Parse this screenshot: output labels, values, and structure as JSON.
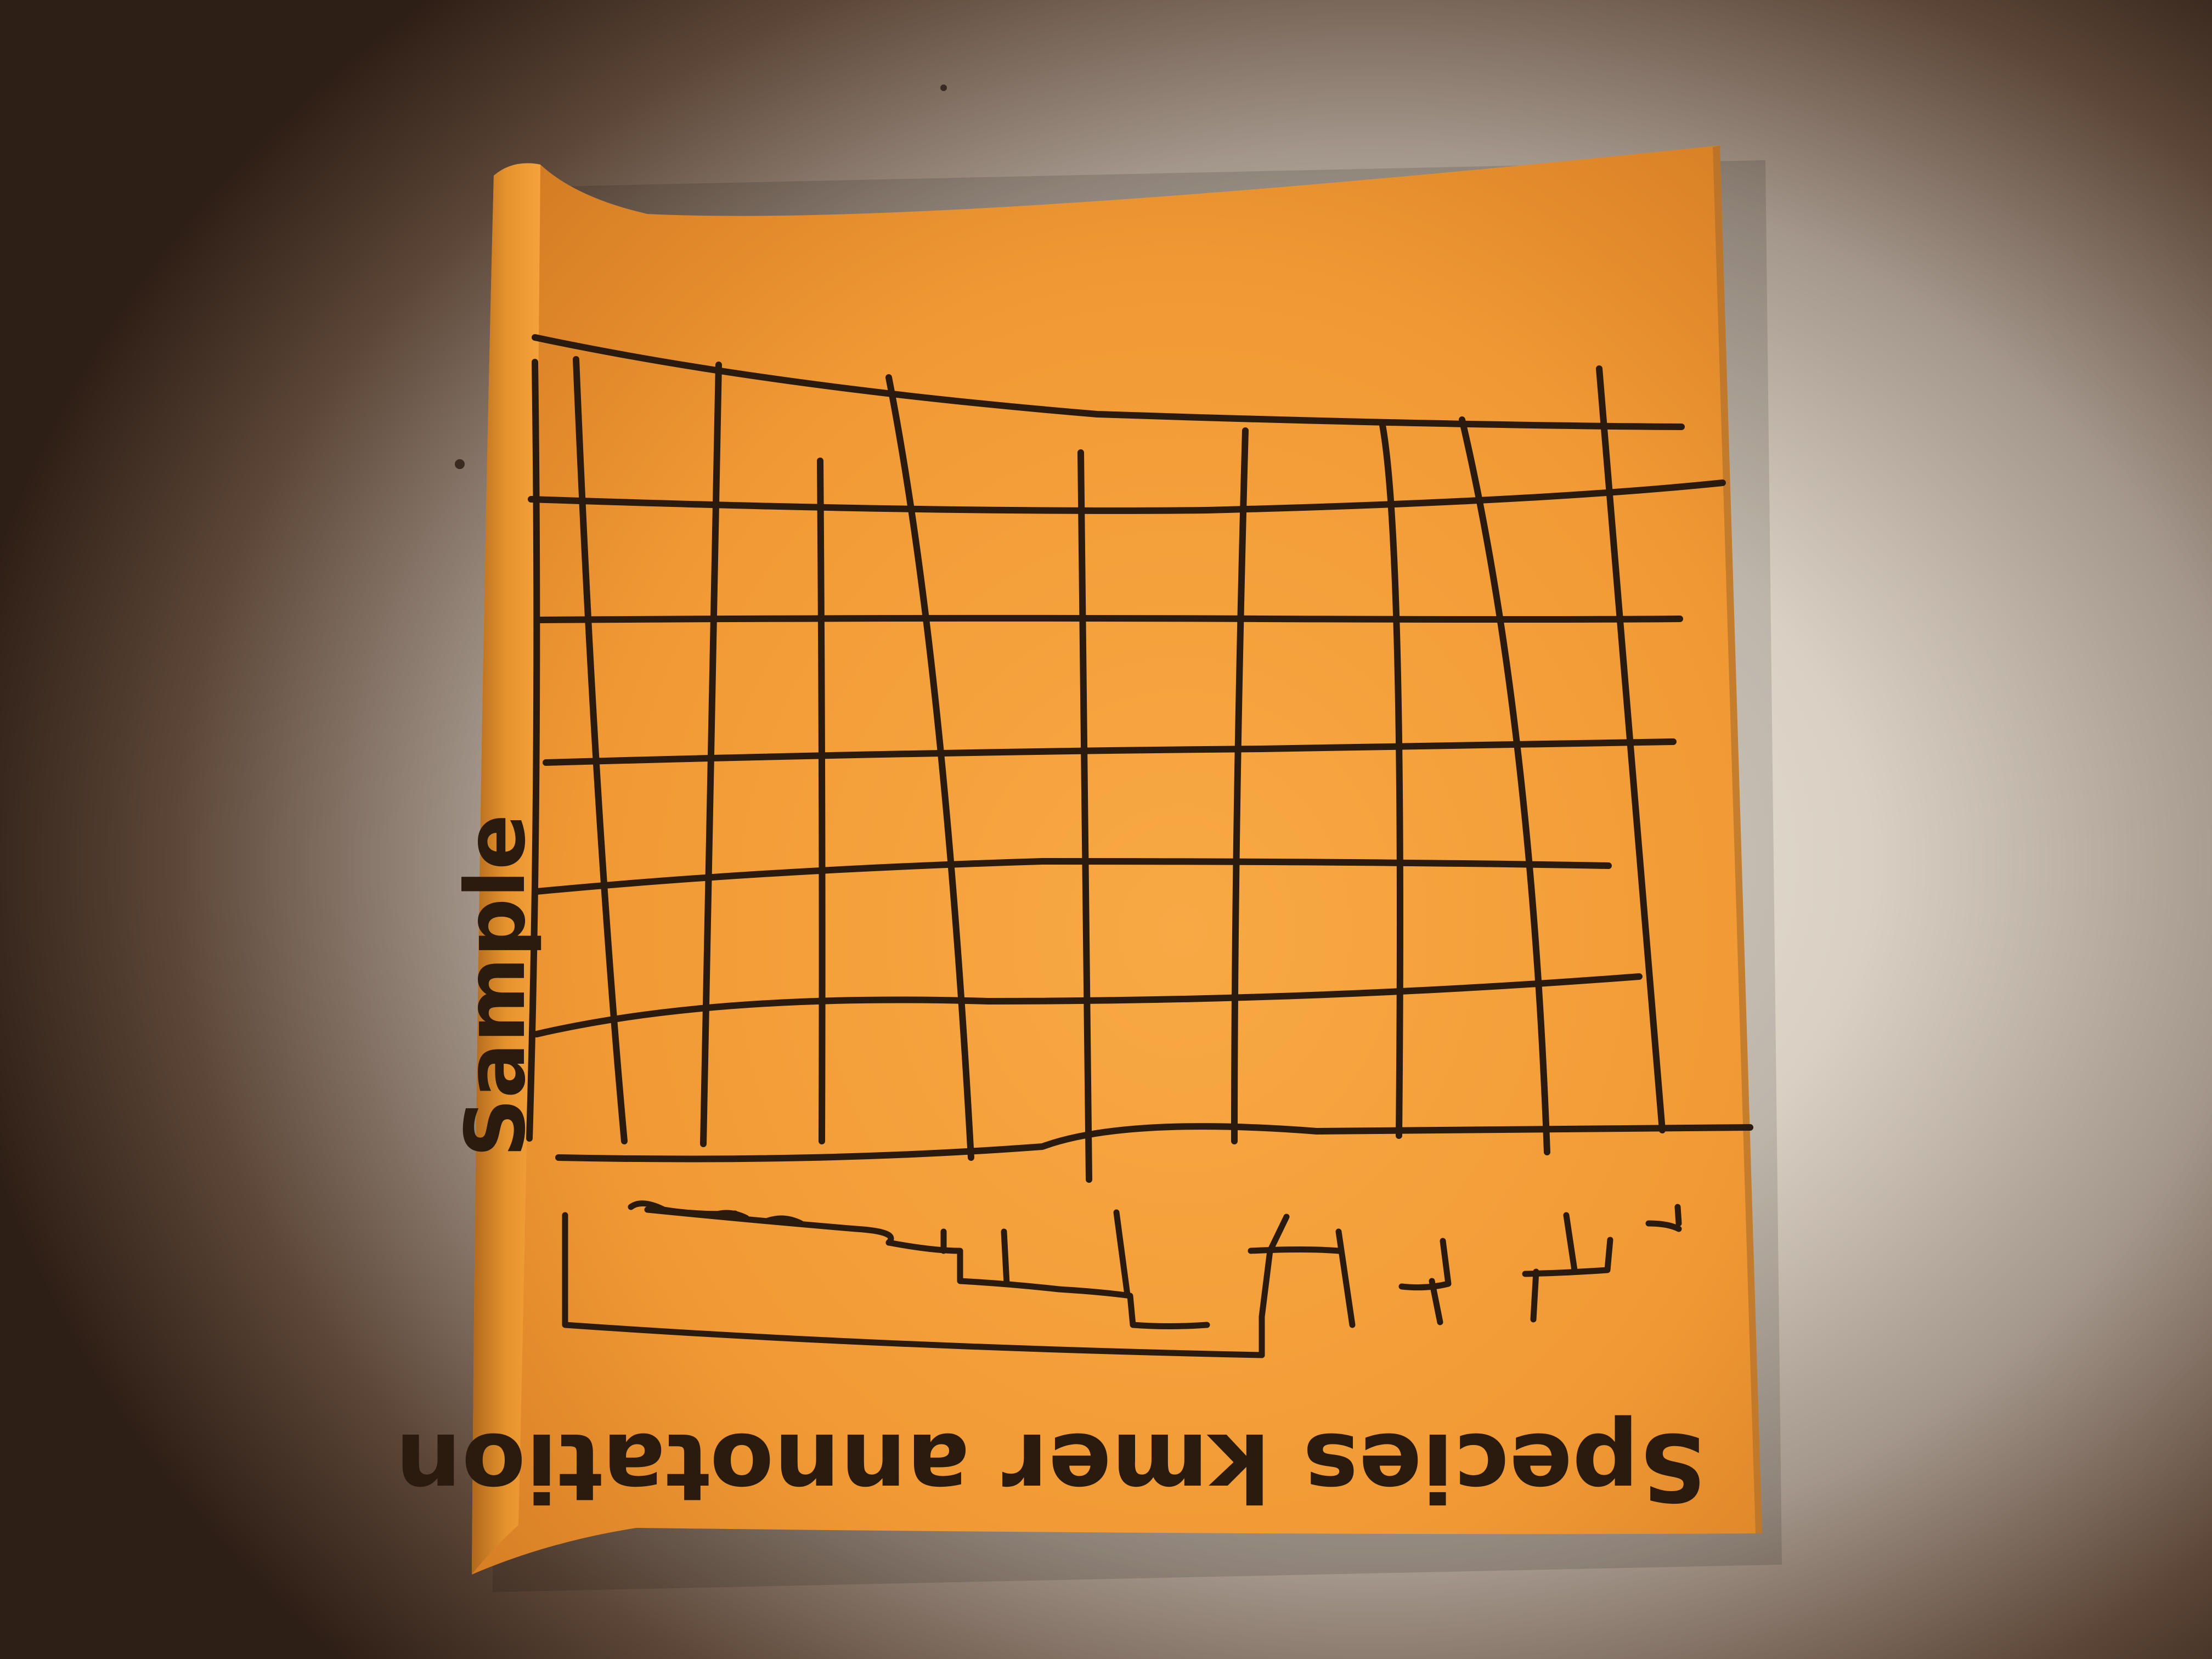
{
  "sketch": {
    "axis_label_left": "Sample",
    "axis_label_bottom": "Species kmer annotation",
    "colors": {
      "note_paper": "#f6a441",
      "ink": "#2b1a0e",
      "background": "#e3dbcf"
    },
    "heatmap_rows": 8,
    "heatmap_columns": 13,
    "dendrogram_leaves": 12
  }
}
